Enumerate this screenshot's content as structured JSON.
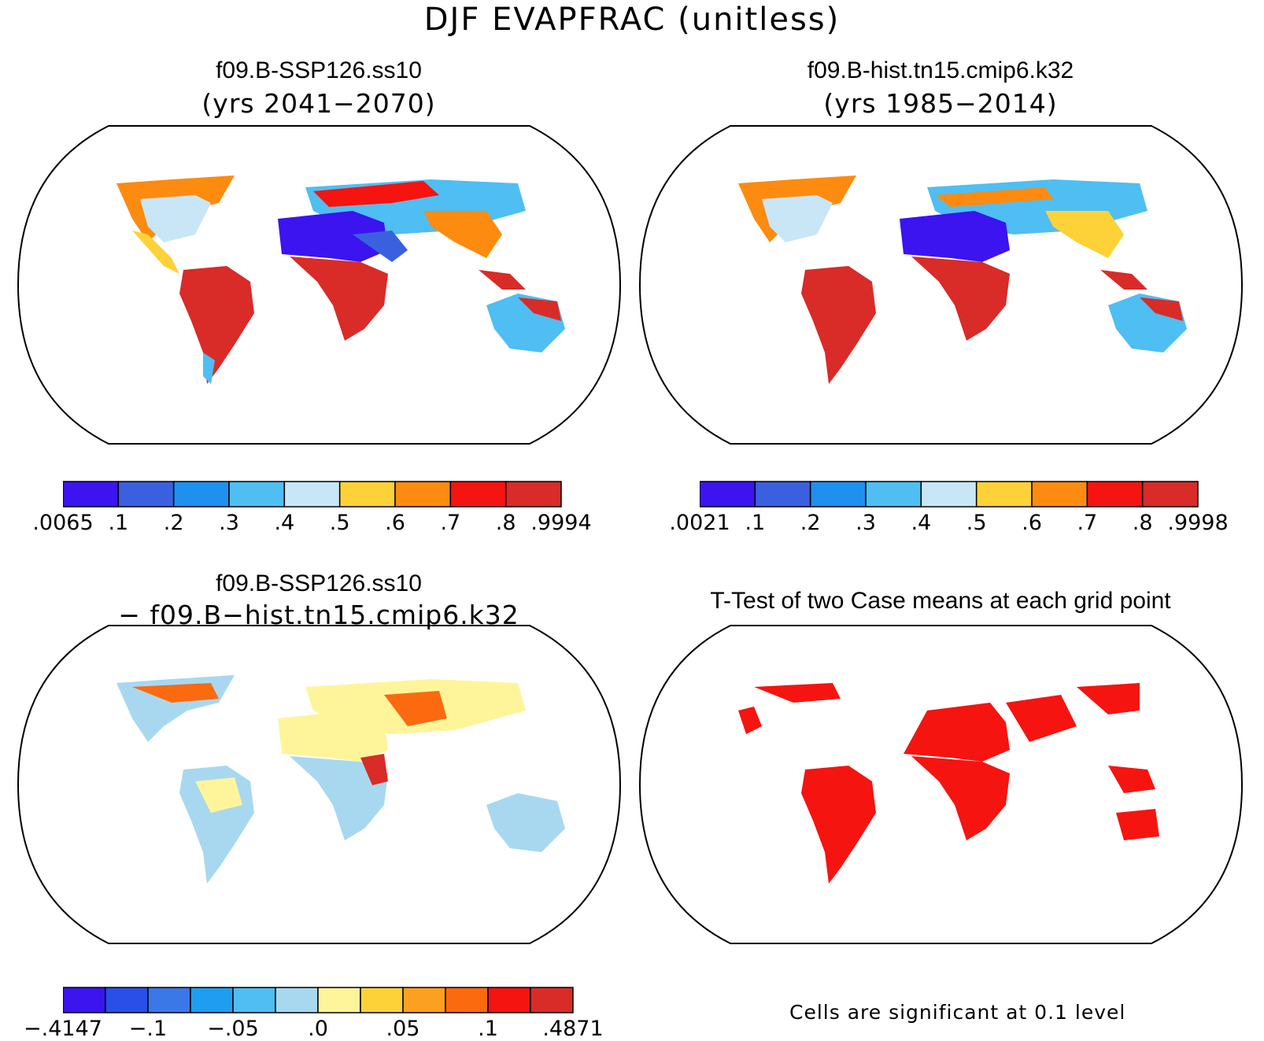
{
  "title": "DJF EVAPFRAC (unitless)",
  "panels": [
    {
      "id": "case1",
      "title": "f09.B-SSP126.ss10",
      "subtitle": "(yrs 2041−2070)",
      "colorbar": {
        "labels": [
          ".0065",
          ".1",
          ".2",
          ".3",
          ".4",
          ".5",
          ".6",
          ".7",
          ".8",
          ".9994"
        ],
        "colors": [
          "#3b14f0",
          "#3a60e0",
          "#1e90ee",
          "#4fbef2",
          "#c8e6f6",
          "#fdd238",
          "#fc8b10",
          "#f51410",
          "#d92b28"
        ]
      }
    },
    {
      "id": "case2",
      "title": "f09.B-hist.tn15.cmip6.k32",
      "subtitle": "(yrs 1985−2014)",
      "colorbar": {
        "labels": [
          ".0021",
          ".1",
          ".2",
          ".3",
          ".4",
          ".5",
          ".6",
          ".7",
          ".8",
          ".9998"
        ],
        "colors": [
          "#3b14f0",
          "#3a60e0",
          "#1e90ee",
          "#4fbef2",
          "#c8e6f6",
          "#fdd238",
          "#fc8b10",
          "#f51410",
          "#d92b28"
        ]
      }
    },
    {
      "id": "diff",
      "title": "f09.B-SSP126.ss10",
      "subtitle": "− f09.B−hist.tn15.cmip6.k32",
      "colorbar": {
        "labels": [
          "−.4147",
          "−.1",
          "−.05",
          ".0",
          ".05",
          ".1",
          ".4871"
        ],
        "colors": [
          "#3b14f0",
          "#2850e8",
          "#3a78e8",
          "#1e9ef0",
          "#4fbef2",
          "#a8d8f0",
          "#fef59a",
          "#fdd238",
          "#fca020",
          "#fc6a10",
          "#f51410",
          "#d92b28"
        ]
      }
    },
    {
      "id": "ttest",
      "title": "T-Test of two Case means at each grid point",
      "note": "Cells are significant at 0.1 level",
      "colors": {
        "significant": "#f51410"
      }
    }
  ]
}
